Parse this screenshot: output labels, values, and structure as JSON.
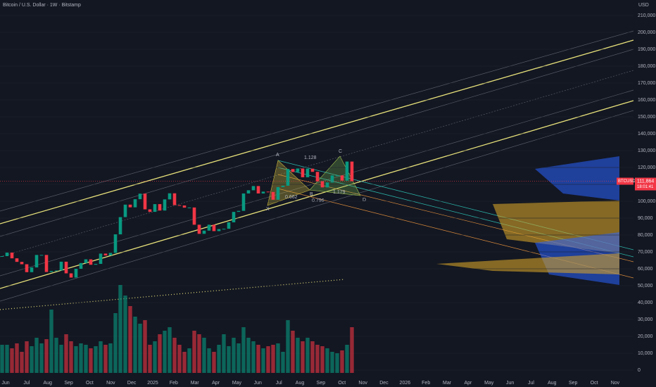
{
  "chart_data": {
    "type": "candlestick",
    "title": "Bitcoin / U.S. Dollar · 1W · Bitstamp",
    "currency": "USD",
    "time_labels": [
      "Jun",
      "Jul",
      "Aug",
      "Sep",
      "Oct",
      "Nov",
      "Dec",
      "2025",
      "Feb",
      "Mar",
      "Apr",
      "May",
      "Jun",
      "Jul",
      "Aug",
      "Sep",
      "Oct",
      "Nov",
      "Dec",
      "2026",
      "Feb",
      "Mar",
      "Apr",
      "May",
      "Jun",
      "Jul",
      "Aug",
      "Sep",
      "Oct",
      "Nov"
    ],
    "close": [
      67500,
      69600,
      66200,
      64100,
      62700,
      58000,
      60800,
      68200,
      68200,
      58100,
      58700,
      59000,
      64200,
      57300,
      54800,
      60000,
      63400,
      65600,
      62400,
      62900,
      69000,
      67900,
      69400,
      80400,
      90600,
      98000,
      96400,
      101200,
      104500,
      95200,
      93700,
      98300,
      94500,
      101100,
      104700,
      97700,
      97500,
      96200,
      96300,
      86100,
      80700,
      82600,
      86100,
      82300,
      83500,
      83700,
      87500,
      93700,
      94300,
      104600,
      106500,
      109000,
      104600,
      105700,
      105500,
      100900,
      108400,
      109200,
      119100,
      117300,
      119400,
      114200,
      119300,
      117400,
      111800,
      108200,
      111100,
      115300,
      115300,
      112200,
      123500,
      111900
    ],
    "volume": [
      40,
      40,
      35,
      42,
      30,
      45,
      38,
      50,
      42,
      48,
      90,
      50,
      40,
      55,
      45,
      38,
      42,
      40,
      35,
      38,
      45,
      40,
      42,
      85,
      125,
      110,
      95,
      80,
      70,
      75,
      40,
      45,
      55,
      60,
      65,
      50,
      40,
      30,
      35,
      60,
      55,
      50,
      35,
      30,
      40,
      55,
      38,
      50,
      42,
      65,
      50,
      45,
      40,
      35,
      38,
      40,
      42,
      30,
      75,
      60,
      50,
      45,
      50,
      45,
      40,
      38,
      35,
      30,
      28,
      32,
      40,
      65
    ],
    "last_price": {
      "value": 111864,
      "label": "111,864"
    },
    "symbol": "BTCUSD",
    "countdown": "18:01:41",
    "pattern_points": [
      "X",
      "A",
      "B",
      "C",
      "D"
    ],
    "pattern_ratios": [
      "1.128",
      "0.662",
      "0.796",
      "1.179"
    ],
    "ylim": [
      0,
      210000
    ],
    "yticks": [
      0,
      {
        "value": 10000,
        "label": "10,000"
      },
      {
        "value": 20000,
        "label": "20,000"
      },
      {
        "value": 30000,
        "label": "30,000"
      },
      {
        "value": 40000,
        "label": "40,000"
      },
      {
        "value": 50000,
        "label": "50,000"
      },
      {
        "value": 60000,
        "label": "60,000"
      },
      {
        "value": 70000,
        "label": "70,000"
      },
      {
        "value": 80000,
        "label": "80,000"
      },
      {
        "value": 90000,
        "label": "90,000"
      },
      {
        "value": 100000,
        "label": "100,000"
      },
      {
        "value": 110000,
        "label": "110,000"
      },
      {
        "value": 120000,
        "label": "120,000"
      },
      {
        "value": 130000,
        "label": "130,000"
      },
      {
        "value": 140000,
        "label": "140,000"
      },
      {
        "value": 150000,
        "label": "150,000"
      },
      {
        "value": 160000,
        "label": "160,000"
      },
      {
        "value": 170000,
        "label": "170,000"
      },
      {
        "value": 180000,
        "label": "180,000"
      },
      {
        "value": 190000,
        "label": "190,000"
      },
      {
        "value": 200000,
        "label": "200,000"
      },
      {
        "value": 210000,
        "label": "210,000"
      }
    ],
    "up_color": "#089981",
    "down_color": "#f23645"
  }
}
